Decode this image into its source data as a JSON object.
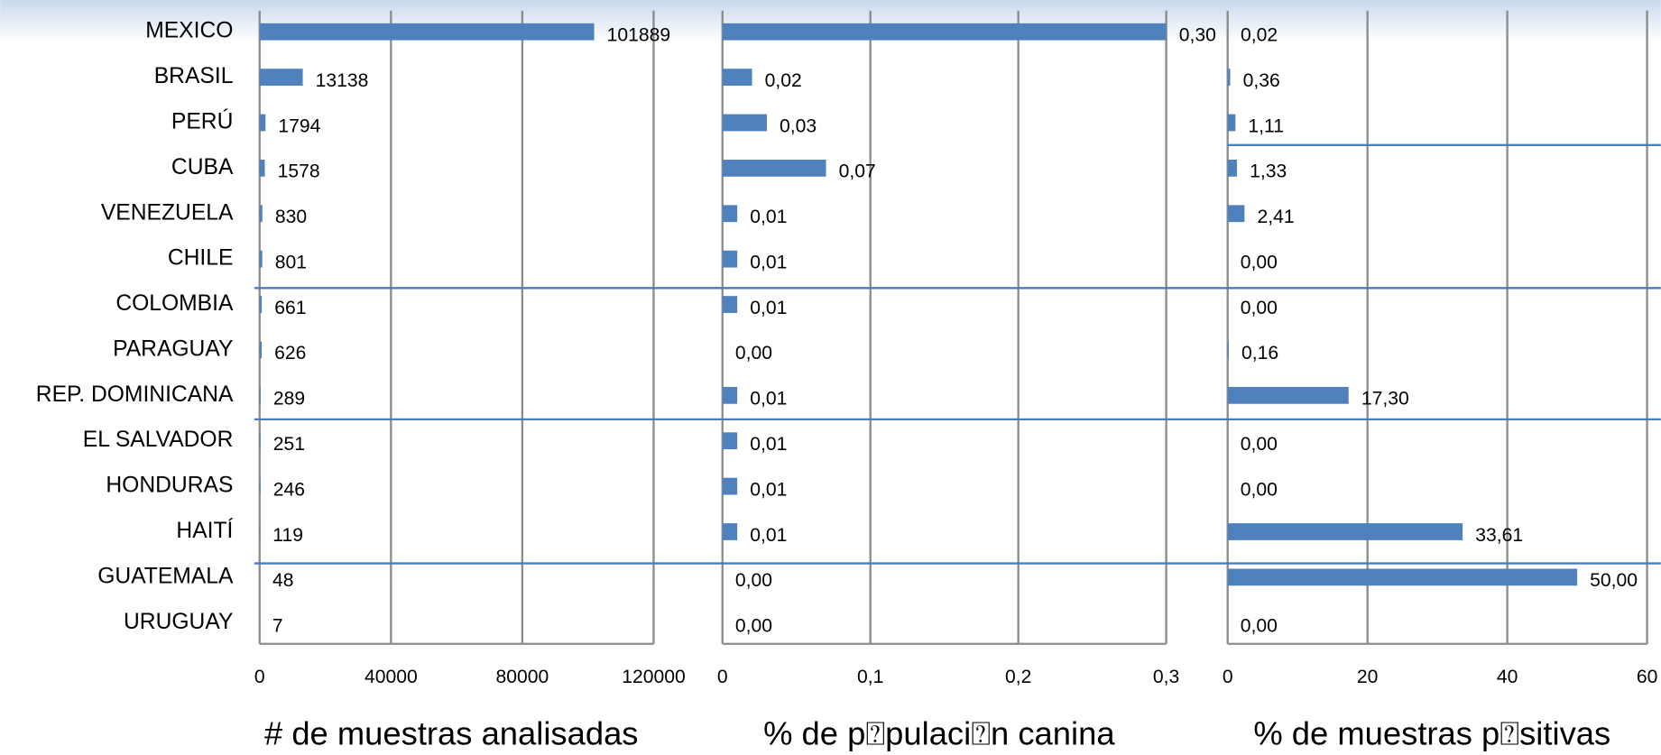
{
  "chart_data": [
    {
      "type": "bar",
      "xlabel": "# de muestras analisadas",
      "categories": [
        "MEXICO",
        "BRASIL",
        "PERÚ",
        "CUBA",
        "VENEZUELA",
        "CHILE",
        "COLOMBIA",
        "PARAGUAY",
        "REP. DOMINICANA",
        "EL SALVADOR",
        "HONDURAS",
        "HAITÍ",
        "GUATEMALA",
        "URUGUAY"
      ],
      "values": [
        101889,
        13138,
        1794,
        1578,
        830,
        801,
        661,
        626,
        289,
        251,
        246,
        119,
        48,
        7
      ],
      "color": "#4f81bd",
      "xlim": [
        0,
        120000
      ],
      "xticks": [
        0,
        40000,
        80000,
        120000
      ],
      "grid": true
    },
    {
      "type": "bar",
      "xlabel": "% de p⍰pulaci⍰n canina",
      "values": [
        0.3,
        0.02,
        0.03,
        0.07,
        0.01,
        0.01,
        0.01,
        0,
        0.01,
        0.01,
        0.01,
        0.01,
        0,
        0
      ],
      "value_labels": [
        "0,30",
        "0,02",
        "0,03",
        "0,07",
        "0,01",
        "0,01",
        "0,01",
        "0,00",
        "0,01",
        "0,01",
        "0,01",
        "0,01",
        "0,00",
        "0,00"
      ],
      "color": "#4f81bd",
      "xlim": [
        0,
        0.3
      ],
      "xticks": [
        0,
        {
          "value": 0.1,
          "label": "0,1"
        },
        {
          "value": 0.2,
          "label": "0,2"
        },
        {
          "value": 0.3,
          "label": "0,3"
        }
      ],
      "grid": true
    },
    {
      "type": "bar",
      "xlabel": "% de muestras p⍰sitivas",
      "values": [
        0.02,
        0.36,
        1.11,
        1.33,
        2.41,
        0,
        0,
        0.16,
        17.3,
        0,
        0,
        33.61,
        50,
        0
      ],
      "value_labels": [
        "0,02",
        "0,36",
        "1,11",
        "1,33",
        "2,41",
        "0,00",
        "0,00",
        "0,16",
        "17,30",
        "0,00",
        "0,00",
        "33,61",
        "50,00",
        "0,00"
      ],
      "color": "#4f81bd",
      "xlim": [
        0,
        60
      ],
      "xticks": [
        0,
        20,
        40,
        60
      ],
      "grid": true
    }
  ]
}
